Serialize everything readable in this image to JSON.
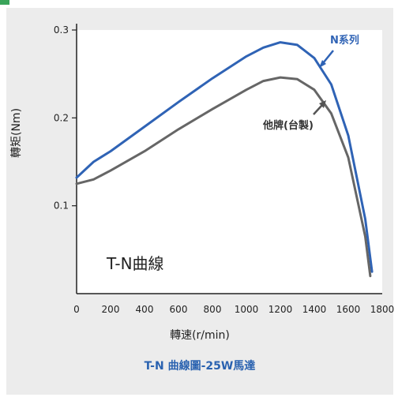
{
  "chart_data": {
    "type": "line",
    "xlabel": "轉速(r/min)",
    "ylabel": "轉矩(Nm)",
    "inner_title": "T-N曲線",
    "caption": "T-N 曲線圖-25W馬達",
    "xlim": [
      0,
      1800
    ],
    "ylim": [
      0,
      0.3
    ],
    "x_ticks": [
      "0",
      "200",
      "400",
      "600",
      "800",
      "1000",
      "1200",
      "1400",
      "1600",
      "1800"
    ],
    "y_ticks": [
      "0.1",
      "0.2",
      "0.3"
    ],
    "series": [
      {
        "name": "N系列",
        "color": "#2f63b5",
        "x": [
          0,
          100,
          200,
          400,
          600,
          800,
          1000,
          1100,
          1200,
          1300,
          1400,
          1500,
          1600,
          1700,
          1740
        ],
        "y": [
          0.132,
          0.15,
          0.162,
          0.19,
          0.218,
          0.245,
          0.27,
          0.28,
          0.286,
          0.283,
          0.268,
          0.238,
          0.18,
          0.085,
          0.025
        ]
      },
      {
        "name": "他牌(台製)",
        "color": "#666666",
        "x": [
          0,
          100,
          200,
          400,
          600,
          800,
          1000,
          1100,
          1200,
          1300,
          1400,
          1500,
          1600,
          1700,
          1730
        ],
        "y": [
          0.125,
          0.13,
          0.14,
          0.162,
          0.187,
          0.21,
          0.232,
          0.242,
          0.246,
          0.244,
          0.232,
          0.205,
          0.155,
          0.065,
          0.02
        ]
      }
    ],
    "annotations": [
      {
        "text": "N系列",
        "series": 0,
        "color": "#2f63b5"
      },
      {
        "text": "他牌(台製)",
        "series": 1,
        "color": "#333333"
      }
    ]
  }
}
